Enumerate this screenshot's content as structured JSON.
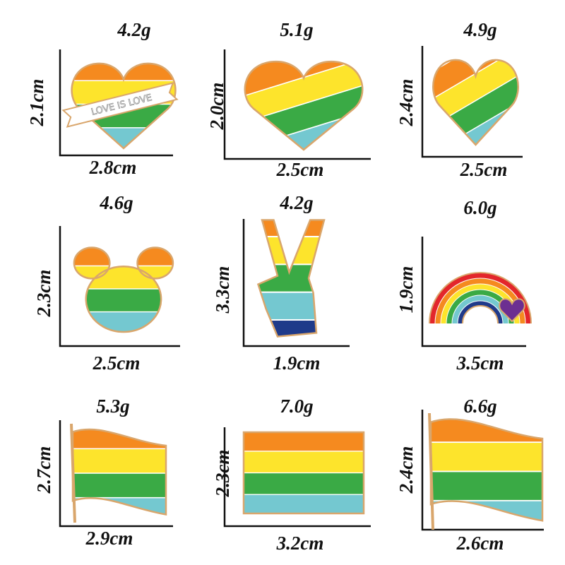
{
  "items": [
    {
      "weight": "4.2g",
      "height": "2.1cm",
      "width": "2.8cm",
      "banner": "LOVE IS LOVE"
    },
    {
      "weight": "5.1g",
      "height": "2.0cm",
      "width": "2.5cm"
    },
    {
      "weight": "4.9g",
      "height": "2.4cm",
      "width": "2.5cm"
    },
    {
      "weight": "4.6g",
      "height": "2.3cm",
      "width": "2.5cm"
    },
    {
      "weight": "4.2g",
      "height": "3.3cm",
      "width": "1.9cm"
    },
    {
      "weight": "6.0g",
      "height": "1.9cm",
      "width": "3.5cm"
    },
    {
      "weight": "5.3g",
      "height": "2.7cm",
      "width": "2.9cm"
    },
    {
      "weight": "7.0g",
      "height": "2.3cm",
      "width": "3.2cm"
    },
    {
      "weight": "6.6g",
      "height": "2.4cm",
      "width": "2.6cm"
    }
  ]
}
